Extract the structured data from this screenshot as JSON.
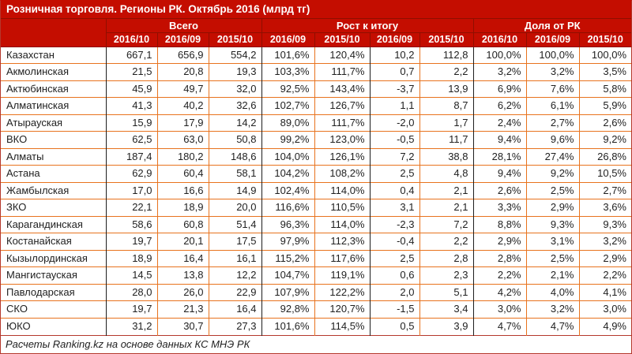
{
  "chart_data": {
    "type": "table",
    "title": "Розничная торговля. Регионы РК. Октябрь 2016 (млрд тг)",
    "unit": "млрд тг",
    "source_note": "Расчеты Ranking.kz на основе данных КС МНЭ РК",
    "column_groups": [
      {
        "label": "Всего",
        "span": 3
      },
      {
        "label": "Рост к итогу",
        "span": 4
      },
      {
        "label": "Доля от РК",
        "span": 3
      }
    ],
    "sub_columns": [
      "2016/10",
      "2016/09",
      "2015/10",
      "2016/09",
      "2015/10",
      "2016/09",
      "2015/10",
      "2016/10",
      "2016/09",
      "2015/10"
    ],
    "rows": [
      {
        "region": "Казахстан",
        "values": [
          "667,1",
          "656,9",
          "554,2",
          "101,6%",
          "120,4%",
          "10,2",
          "112,8",
          "100,0%",
          "100,0%",
          "100,0%"
        ]
      },
      {
        "region": "Акмолинская",
        "values": [
          "21,5",
          "20,8",
          "19,3",
          "103,3%",
          "111,7%",
          "0,7",
          "2,2",
          "3,2%",
          "3,2%",
          "3,5%"
        ]
      },
      {
        "region": "Актюбинская",
        "values": [
          "45,9",
          "49,7",
          "32,0",
          "92,5%",
          "143,4%",
          "-3,7",
          "13,9",
          "6,9%",
          "7,6%",
          "5,8%"
        ]
      },
      {
        "region": "Алматинская",
        "values": [
          "41,3",
          "40,2",
          "32,6",
          "102,7%",
          "126,7%",
          "1,1",
          "8,7",
          "6,2%",
          "6,1%",
          "5,9%"
        ]
      },
      {
        "region": "Атырауская",
        "values": [
          "15,9",
          "17,9",
          "14,2",
          "89,0%",
          "111,7%",
          "-2,0",
          "1,7",
          "2,4%",
          "2,7%",
          "2,6%"
        ]
      },
      {
        "region": "ВКО",
        "values": [
          "62,5",
          "63,0",
          "50,8",
          "99,2%",
          "123,0%",
          "-0,5",
          "11,7",
          "9,4%",
          "9,6%",
          "9,2%"
        ]
      },
      {
        "region": "Алматы",
        "values": [
          "187,4",
          "180,2",
          "148,6",
          "104,0%",
          "126,1%",
          "7,2",
          "38,8",
          "28,1%",
          "27,4%",
          "26,8%"
        ]
      },
      {
        "region": "Астана",
        "values": [
          "62,9",
          "60,4",
          "58,1",
          "104,2%",
          "108,2%",
          "2,5",
          "4,8",
          "9,4%",
          "9,2%",
          "10,5%"
        ]
      },
      {
        "region": "Жамбылская",
        "values": [
          "17,0",
          "16,6",
          "14,9",
          "102,4%",
          "114,0%",
          "0,4",
          "2,1",
          "2,6%",
          "2,5%",
          "2,7%"
        ]
      },
      {
        "region": "ЗКО",
        "values": [
          "22,1",
          "18,9",
          "20,0",
          "116,6%",
          "110,5%",
          "3,1",
          "2,1",
          "3,3%",
          "2,9%",
          "3,6%"
        ]
      },
      {
        "region": "Карагандинская",
        "values": [
          "58,6",
          "60,8",
          "51,4",
          "96,3%",
          "114,0%",
          "-2,3",
          "7,2",
          "8,8%",
          "9,3%",
          "9,3%"
        ]
      },
      {
        "region": "Костанайская",
        "values": [
          "19,7",
          "20,1",
          "17,5",
          "97,9%",
          "112,3%",
          "-0,4",
          "2,2",
          "2,9%",
          "3,1%",
          "3,2%"
        ]
      },
      {
        "region": "Кызылординская",
        "values": [
          "18,9",
          "16,4",
          "16,1",
          "115,2%",
          "117,6%",
          "2,5",
          "2,8",
          "2,8%",
          "2,5%",
          "2,9%"
        ]
      },
      {
        "region": "Мангистауская",
        "values": [
          "14,5",
          "13,8",
          "12,2",
          "104,7%",
          "119,1%",
          "0,6",
          "2,3",
          "2,2%",
          "2,1%",
          "2,2%"
        ]
      },
      {
        "region": "Павлодарская",
        "values": [
          "28,0",
          "26,0",
          "22,9",
          "107,9%",
          "122,2%",
          "2,0",
          "5,1",
          "4,2%",
          "4,0%",
          "4,1%"
        ]
      },
      {
        "region": "СКО",
        "values": [
          "19,7",
          "21,3",
          "16,4",
          "92,8%",
          "120,7%",
          "-1,5",
          "3,4",
          "3,0%",
          "3,2%",
          "3,0%"
        ]
      },
      {
        "region": "ЮКО",
        "values": [
          "31,2",
          "30,7",
          "27,3",
          "101,6%",
          "114,5%",
          "0,5",
          "3,9",
          "4,7%",
          "4,7%",
          "4,9%"
        ]
      }
    ]
  },
  "colors": {
    "header_bg": "#c40d00",
    "header_text": "#ffffff",
    "header_separator": "#8f0e00",
    "border_orange": "#e8731e",
    "border_black": "#1e1e1e",
    "border_outer": "#b5382c",
    "text": "#1f1f1f"
  }
}
